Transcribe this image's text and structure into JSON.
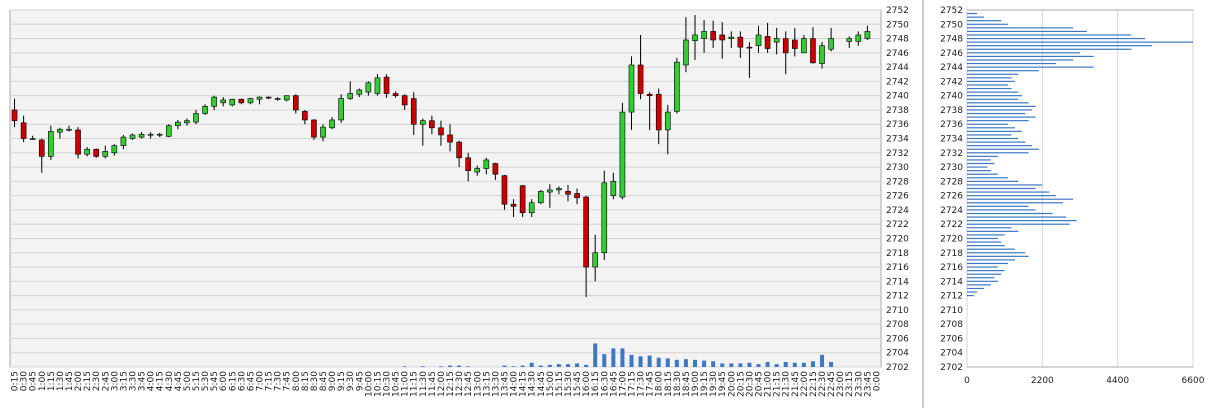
{
  "chart_data": [
    {
      "type": "candlestick",
      "title": "",
      "price_axis": {
        "min": 2702,
        "max": 2752,
        "step": 2
      },
      "volume_baseline_price": 2702,
      "time_labels": [
        "0:15",
        "0:30",
        "0:45",
        "1:00",
        "1:15",
        "1:30",
        "1:45",
        "2:00",
        "2:15",
        "2:30",
        "2:45",
        "3:00",
        "3:15",
        "3:30",
        "3:45",
        "4:00",
        "4:15",
        "4:30",
        "4:45",
        "5:00",
        "5:15",
        "5:30",
        "5:45",
        "6:00",
        "6:15",
        "6:30",
        "6:45",
        "7:00",
        "7:15",
        "7:30",
        "7:45",
        "8:00",
        "8:15",
        "8:30",
        "8:45",
        "9:00",
        "9:15",
        "9:30",
        "9:45",
        "10:00",
        "10:15",
        "10:30",
        "10:45",
        "11:00",
        "11:15",
        "11:30",
        "11:45",
        "12:00",
        "12:15",
        "12:30",
        "12:45",
        "13:00",
        "13:15",
        "13:30",
        "13:45",
        "14:00",
        "14:15",
        "14:30",
        "14:45",
        "15:00",
        "15:15",
        "15:30",
        "15:45",
        "16:00",
        "16:15",
        "16:30",
        "16:45",
        "17:00",
        "17:15",
        "17:30",
        "17:45",
        "18:00",
        "18:15",
        "18:30",
        "18:45",
        "19:00",
        "19:15",
        "19:30",
        "19:45",
        "20:00",
        "20:15",
        "20:30",
        "20:45",
        "21:00",
        "21:15",
        "21:30",
        "21:45",
        "22:00",
        "22:15",
        "22:30",
        "22:45",
        "23:00",
        "23:15",
        "23:30",
        "23:45",
        "0:00"
      ],
      "candles": [
        {
          "o": 2738.0,
          "h": 2739.6,
          "l": 2735.6,
          "c": 2736.5
        },
        {
          "o": 2736.2,
          "h": 2737.2,
          "l": 2733.5,
          "c": 2734.0
        },
        {
          "o": 2734.0,
          "h": 2734.4,
          "l": 2733.8,
          "c": 2734.0
        },
        {
          "o": 2733.8,
          "h": 2734.0,
          "l": 2729.2,
          "c": 2731.5
        },
        {
          "o": 2731.5,
          "h": 2735.8,
          "l": 2731.0,
          "c": 2735.0
        },
        {
          "o": 2734.9,
          "h": 2735.5,
          "l": 2734.0,
          "c": 2735.3
        },
        {
          "o": 2735.3,
          "h": 2735.8,
          "l": 2735.0,
          "c": 2735.3
        },
        {
          "o": 2735.2,
          "h": 2735.6,
          "l": 2731.2,
          "c": 2731.8
        },
        {
          "o": 2731.8,
          "h": 2732.8,
          "l": 2731.5,
          "c": 2732.5
        },
        {
          "o": 2732.5,
          "h": 2732.6,
          "l": 2731.3,
          "c": 2731.5
        },
        {
          "o": 2731.5,
          "h": 2733.0,
          "l": 2731.2,
          "c": 2732.2
        },
        {
          "o": 2732.0,
          "h": 2733.2,
          "l": 2731.6,
          "c": 2733.0
        },
        {
          "o": 2733.0,
          "h": 2734.5,
          "l": 2732.5,
          "c": 2734.2
        },
        {
          "o": 2734.0,
          "h": 2734.7,
          "l": 2733.8,
          "c": 2734.5
        },
        {
          "o": 2734.2,
          "h": 2734.9,
          "l": 2734.0,
          "c": 2734.6
        },
        {
          "o": 2734.5,
          "h": 2734.9,
          "l": 2734.0,
          "c": 2734.6
        },
        {
          "o": 2734.6,
          "h": 2734.8,
          "l": 2734.2,
          "c": 2734.6
        },
        {
          "o": 2734.3,
          "h": 2736.0,
          "l": 2734.2,
          "c": 2735.8
        },
        {
          "o": 2735.8,
          "h": 2736.6,
          "l": 2735.3,
          "c": 2736.3
        },
        {
          "o": 2736.2,
          "h": 2736.8,
          "l": 2735.8,
          "c": 2736.5
        },
        {
          "o": 2736.3,
          "h": 2738.0,
          "l": 2736.0,
          "c": 2737.5
        },
        {
          "o": 2737.5,
          "h": 2738.8,
          "l": 2737.3,
          "c": 2738.5
        },
        {
          "o": 2738.5,
          "h": 2740.0,
          "l": 2738.0,
          "c": 2739.8
        },
        {
          "o": 2739.0,
          "h": 2739.8,
          "l": 2738.5,
          "c": 2739.4
        },
        {
          "o": 2738.7,
          "h": 2739.6,
          "l": 2738.5,
          "c": 2739.5
        },
        {
          "o": 2739.5,
          "h": 2739.6,
          "l": 2738.8,
          "c": 2739.0
        },
        {
          "o": 2739.0,
          "h": 2739.7,
          "l": 2738.8,
          "c": 2739.6
        },
        {
          "o": 2739.5,
          "h": 2739.9,
          "l": 2738.8,
          "c": 2739.8
        },
        {
          "o": 2739.8,
          "h": 2739.9,
          "l": 2739.5,
          "c": 2739.7
        },
        {
          "o": 2739.5,
          "h": 2739.8,
          "l": 2739.3,
          "c": 2739.6
        },
        {
          "o": 2739.4,
          "h": 2740.0,
          "l": 2739.2,
          "c": 2740.0
        },
        {
          "o": 2740.0,
          "h": 2740.2,
          "l": 2737.5,
          "c": 2738.0
        },
        {
          "o": 2737.8,
          "h": 2738.0,
          "l": 2736.0,
          "c": 2736.6
        },
        {
          "o": 2736.6,
          "h": 2736.7,
          "l": 2733.8,
          "c": 2734.2
        },
        {
          "o": 2734.2,
          "h": 2736.0,
          "l": 2733.6,
          "c": 2735.6
        },
        {
          "o": 2735.5,
          "h": 2737.0,
          "l": 2735.3,
          "c": 2736.6
        },
        {
          "o": 2736.6,
          "h": 2740.2,
          "l": 2736.2,
          "c": 2739.6
        },
        {
          "o": 2739.6,
          "h": 2742.0,
          "l": 2739.4,
          "c": 2740.3
        },
        {
          "o": 2740.2,
          "h": 2741.0,
          "l": 2739.8,
          "c": 2740.8
        },
        {
          "o": 2740.5,
          "h": 2742.0,
          "l": 2740.0,
          "c": 2741.8
        },
        {
          "o": 2740.3,
          "h": 2743.0,
          "l": 2740.0,
          "c": 2742.5
        },
        {
          "o": 2742.6,
          "h": 2743.0,
          "l": 2739.7,
          "c": 2740.3
        },
        {
          "o": 2740.3,
          "h": 2740.6,
          "l": 2739.7,
          "c": 2740.0
        },
        {
          "o": 2740.0,
          "h": 2740.2,
          "l": 2738.0,
          "c": 2738.7
        },
        {
          "o": 2739.6,
          "h": 2740.5,
          "l": 2734.5,
          "c": 2736.0
        },
        {
          "o": 2736.0,
          "h": 2736.8,
          "l": 2733.0,
          "c": 2736.5
        },
        {
          "o": 2736.5,
          "h": 2737.2,
          "l": 2734.6,
          "c": 2735.5
        },
        {
          "o": 2735.5,
          "h": 2736.5,
          "l": 2733.0,
          "c": 2734.5
        },
        {
          "o": 2734.5,
          "h": 2736.0,
          "l": 2732.2,
          "c": 2733.5
        },
        {
          "o": 2733.5,
          "h": 2733.7,
          "l": 2730.0,
          "c": 2731.3
        },
        {
          "o": 2731.3,
          "h": 2732.0,
          "l": 2728.0,
          "c": 2729.5
        },
        {
          "o": 2729.3,
          "h": 2730.2,
          "l": 2728.8,
          "c": 2729.8
        },
        {
          "o": 2729.8,
          "h": 2731.3,
          "l": 2729.0,
          "c": 2731.0
        },
        {
          "o": 2730.5,
          "h": 2730.6,
          "l": 2728.2,
          "c": 2729.0
        },
        {
          "o": 2728.8,
          "h": 2728.9,
          "l": 2724.0,
          "c": 2724.8
        },
        {
          "o": 2724.8,
          "h": 2725.5,
          "l": 2723.0,
          "c": 2724.5
        },
        {
          "o": 2727.4,
          "h": 2727.5,
          "l": 2723.0,
          "c": 2723.6
        },
        {
          "o": 2723.6,
          "h": 2725.5,
          "l": 2723.0,
          "c": 2725.0
        },
        {
          "o": 2725.0,
          "h": 2726.8,
          "l": 2724.8,
          "c": 2726.6
        },
        {
          "o": 2726.5,
          "h": 2727.6,
          "l": 2724.3,
          "c": 2726.8
        },
        {
          "o": 2726.8,
          "h": 2727.3,
          "l": 2726.2,
          "c": 2727.0
        },
        {
          "o": 2726.6,
          "h": 2727.5,
          "l": 2725.2,
          "c": 2726.2
        },
        {
          "o": 2726.3,
          "h": 2727.0,
          "l": 2724.8,
          "c": 2725.7
        },
        {
          "o": 2725.8,
          "h": 2726.0,
          "l": 2711.8,
          "c": 2716.0
        },
        {
          "o": 2716.0,
          "h": 2720.5,
          "l": 2714.0,
          "c": 2718.0
        },
        {
          "o": 2718.0,
          "h": 2729.5,
          "l": 2717.0,
          "c": 2727.8
        },
        {
          "o": 2726.0,
          "h": 2729.2,
          "l": 2725.5,
          "c": 2728.0
        },
        {
          "o": 2725.8,
          "h": 2739.0,
          "l": 2725.5,
          "c": 2737.7
        },
        {
          "o": 2737.7,
          "h": 2745.5,
          "l": 2735.2,
          "c": 2744.3
        },
        {
          "o": 2744.3,
          "h": 2748.5,
          "l": 2739.5,
          "c": 2740.3
        },
        {
          "o": 2740.2,
          "h": 2740.5,
          "l": 2735.2,
          "c": 2740.0
        },
        {
          "o": 2740.2,
          "h": 2741.0,
          "l": 2733.2,
          "c": 2735.2
        },
        {
          "o": 2735.2,
          "h": 2738.7,
          "l": 2731.8,
          "c": 2737.7
        },
        {
          "o": 2737.8,
          "h": 2745.3,
          "l": 2737.5,
          "c": 2744.7
        },
        {
          "o": 2744.3,
          "h": 2751.0,
          "l": 2743.3,
          "c": 2747.8
        },
        {
          "o": 2747.7,
          "h": 2751.3,
          "l": 2745.0,
          "c": 2748.5
        },
        {
          "o": 2748.0,
          "h": 2750.6,
          "l": 2746.0,
          "c": 2749.0
        },
        {
          "o": 2749.0,
          "h": 2750.5,
          "l": 2746.7,
          "c": 2747.8
        },
        {
          "o": 2748.5,
          "h": 2750.3,
          "l": 2745.2,
          "c": 2747.8
        },
        {
          "o": 2748.0,
          "h": 2749.0,
          "l": 2746.7,
          "c": 2748.2
        },
        {
          "o": 2748.2,
          "h": 2749.0,
          "l": 2745.3,
          "c": 2746.8
        },
        {
          "o": 2746.8,
          "h": 2747.5,
          "l": 2742.5,
          "c": 2746.7
        },
        {
          "o": 2747.0,
          "h": 2749.8,
          "l": 2746.0,
          "c": 2748.5
        },
        {
          "o": 2748.3,
          "h": 2750.2,
          "l": 2746.0,
          "c": 2746.6
        },
        {
          "o": 2747.5,
          "h": 2749.5,
          "l": 2745.8,
          "c": 2748.0
        },
        {
          "o": 2748.0,
          "h": 2749.0,
          "l": 2743.0,
          "c": 2746.0
        },
        {
          "o": 2747.8,
          "h": 2749.5,
          "l": 2745.5,
          "c": 2746.6
        },
        {
          "o": 2746.0,
          "h": 2748.5,
          "l": 2746.0,
          "c": 2748.0
        },
        {
          "o": 2748.0,
          "h": 2749.6,
          "l": 2744.5,
          "c": 2744.6
        },
        {
          "o": 2744.5,
          "h": 2747.5,
          "l": 2743.8,
          "c": 2747.0
        },
        {
          "o": 2746.5,
          "h": 2749.5,
          "l": 2746.2,
          "c": 2748.0
        },
        null,
        {
          "o": 2747.6,
          "h": 2748.3,
          "l": 2746.7,
          "c": 2748.0
        },
        {
          "o": 2747.6,
          "h": 2749.0,
          "l": 2747.0,
          "c": 2748.5
        },
        {
          "o": 2748.0,
          "h": 2749.8,
          "l": 2747.8,
          "c": 2749.0
        },
        null
      ],
      "volume": [
        0,
        0,
        0,
        0,
        0,
        0,
        0,
        0,
        0,
        0,
        0,
        0,
        0,
        0,
        0,
        0,
        0,
        0,
        0,
        0,
        0,
        0,
        0,
        0,
        0,
        0,
        0,
        0,
        0,
        0,
        0,
        0,
        0,
        0,
        0,
        0,
        0,
        0,
        0,
        0,
        0,
        0,
        0,
        0.1,
        0,
        0.1,
        0,
        0.1,
        0.2,
        0.2,
        0.1,
        0,
        0,
        0,
        0.2,
        0.1,
        0.2,
        0.6,
        0.2,
        0.3,
        0.4,
        0.4,
        0.5,
        0.3,
        3.3,
        1.8,
        2.6,
        2.6,
        1.7,
        1.5,
        1.6,
        1.3,
        1.2,
        1.0,
        1.1,
        1.0,
        0.9,
        0.8,
        0.5,
        0.5,
        0.5,
        0.6,
        0.4,
        0.7,
        0.4,
        0.7,
        0.6,
        0.6,
        0.8,
        1.7,
        0.7,
        0,
        0,
        0,
        0,
        0
      ],
      "colors": {
        "up": "#33cc33",
        "down": "#cc0000",
        "volume": "#3d78c4",
        "grid": "#d4d4d4",
        "plot_bg": "#f3f3f3"
      }
    },
    {
      "type": "bar",
      "orientation": "horizontal",
      "title": "",
      "xlim": [
        0,
        6600
      ],
      "x_ticks": [
        "0",
        "2200",
        "4400",
        "6600"
      ],
      "price_axis": {
        "min": 2702,
        "max": 2752,
        "step": 2
      },
      "profile": [
        {
          "price": 2712.0,
          "v": 200
        },
        {
          "price": 2712.5,
          "v": 300
        },
        {
          "price": 2713.0,
          "v": 500
        },
        {
          "price": 2713.5,
          "v": 700
        },
        {
          "price": 2714.0,
          "v": 900
        },
        {
          "price": 2714.5,
          "v": 800
        },
        {
          "price": 2715.0,
          "v": 1000
        },
        {
          "price": 2715.5,
          "v": 1100
        },
        {
          "price": 2716.0,
          "v": 900
        },
        {
          "price": 2716.5,
          "v": 1200
        },
        {
          "price": 2717.0,
          "v": 1400
        },
        {
          "price": 2717.5,
          "v": 1800
        },
        {
          "price": 2718.0,
          "v": 1700
        },
        {
          "price": 2718.5,
          "v": 1400
        },
        {
          "price": 2719.0,
          "v": 1100
        },
        {
          "price": 2719.5,
          "v": 1000
        },
        {
          "price": 2720.0,
          "v": 900
        },
        {
          "price": 2720.5,
          "v": 1100
        },
        {
          "price": 2721.0,
          "v": 1500
        },
        {
          "price": 2721.5,
          "v": 1300
        },
        {
          "price": 2722.0,
          "v": 3000
        },
        {
          "price": 2722.5,
          "v": 3200
        },
        {
          "price": 2723.0,
          "v": 2900
        },
        {
          "price": 2723.5,
          "v": 2500
        },
        {
          "price": 2724.0,
          "v": 2000
        },
        {
          "price": 2724.5,
          "v": 1800
        },
        {
          "price": 2725.0,
          "v": 2800
        },
        {
          "price": 2725.5,
          "v": 3100
        },
        {
          "price": 2726.0,
          "v": 2600
        },
        {
          "price": 2726.5,
          "v": 2400
        },
        {
          "price": 2727.0,
          "v": 2000
        },
        {
          "price": 2727.5,
          "v": 2200
        },
        {
          "price": 2728.0,
          "v": 1500
        },
        {
          "price": 2728.5,
          "v": 1200
        },
        {
          "price": 2729.0,
          "v": 900
        },
        {
          "price": 2729.5,
          "v": 700
        },
        {
          "price": 2730.0,
          "v": 600
        },
        {
          "price": 2730.5,
          "v": 800
        },
        {
          "price": 2731.0,
          "v": 700
        },
        {
          "price": 2731.5,
          "v": 900
        },
        {
          "price": 2732.0,
          "v": 1800
        },
        {
          "price": 2732.5,
          "v": 2100
        },
        {
          "price": 2733.0,
          "v": 1900
        },
        {
          "price": 2733.5,
          "v": 1700
        },
        {
          "price": 2734.0,
          "v": 1500
        },
        {
          "price": 2734.5,
          "v": 1300
        },
        {
          "price": 2735.0,
          "v": 1600
        },
        {
          "price": 2735.5,
          "v": 1400
        },
        {
          "price": 2736.0,
          "v": 1200
        },
        {
          "price": 2736.5,
          "v": 1800
        },
        {
          "price": 2737.0,
          "v": 2000
        },
        {
          "price": 2737.5,
          "v": 1700
        },
        {
          "price": 2738.0,
          "v": 1900
        },
        {
          "price": 2738.5,
          "v": 2000
        },
        {
          "price": 2739.0,
          "v": 1800
        },
        {
          "price": 2739.5,
          "v": 1500
        },
        {
          "price": 2740.0,
          "v": 1600
        },
        {
          "price": 2740.5,
          "v": 1500
        },
        {
          "price": 2741.0,
          "v": 1300
        },
        {
          "price": 2741.5,
          "v": 1200
        },
        {
          "price": 2742.0,
          "v": 1400
        },
        {
          "price": 2742.5,
          "v": 1300
        },
        {
          "price": 2743.0,
          "v": 1500
        },
        {
          "price": 2743.5,
          "v": 2100
        },
        {
          "price": 2744.0,
          "v": 3700
        },
        {
          "price": 2744.5,
          "v": 2600
        },
        {
          "price": 2745.0,
          "v": 3100
        },
        {
          "price": 2745.5,
          "v": 3700
        },
        {
          "price": 2746.0,
          "v": 3300
        },
        {
          "price": 2746.5,
          "v": 4800
        },
        {
          "price": 2747.0,
          "v": 5400
        },
        {
          "price": 2747.5,
          "v": 6600
        },
        {
          "price": 2748.0,
          "v": 5200
        },
        {
          "price": 2748.5,
          "v": 4800
        },
        {
          "price": 2749.0,
          "v": 3500
        },
        {
          "price": 2749.5,
          "v": 3100
        },
        {
          "price": 2750.0,
          "v": 1200
        },
        {
          "price": 2750.5,
          "v": 1000
        },
        {
          "price": 2751.0,
          "v": 500
        },
        {
          "price": 2751.5,
          "v": 300
        }
      ],
      "colors": {
        "bar": "#3d78c4",
        "grid": "#d4d4d4"
      }
    }
  ]
}
